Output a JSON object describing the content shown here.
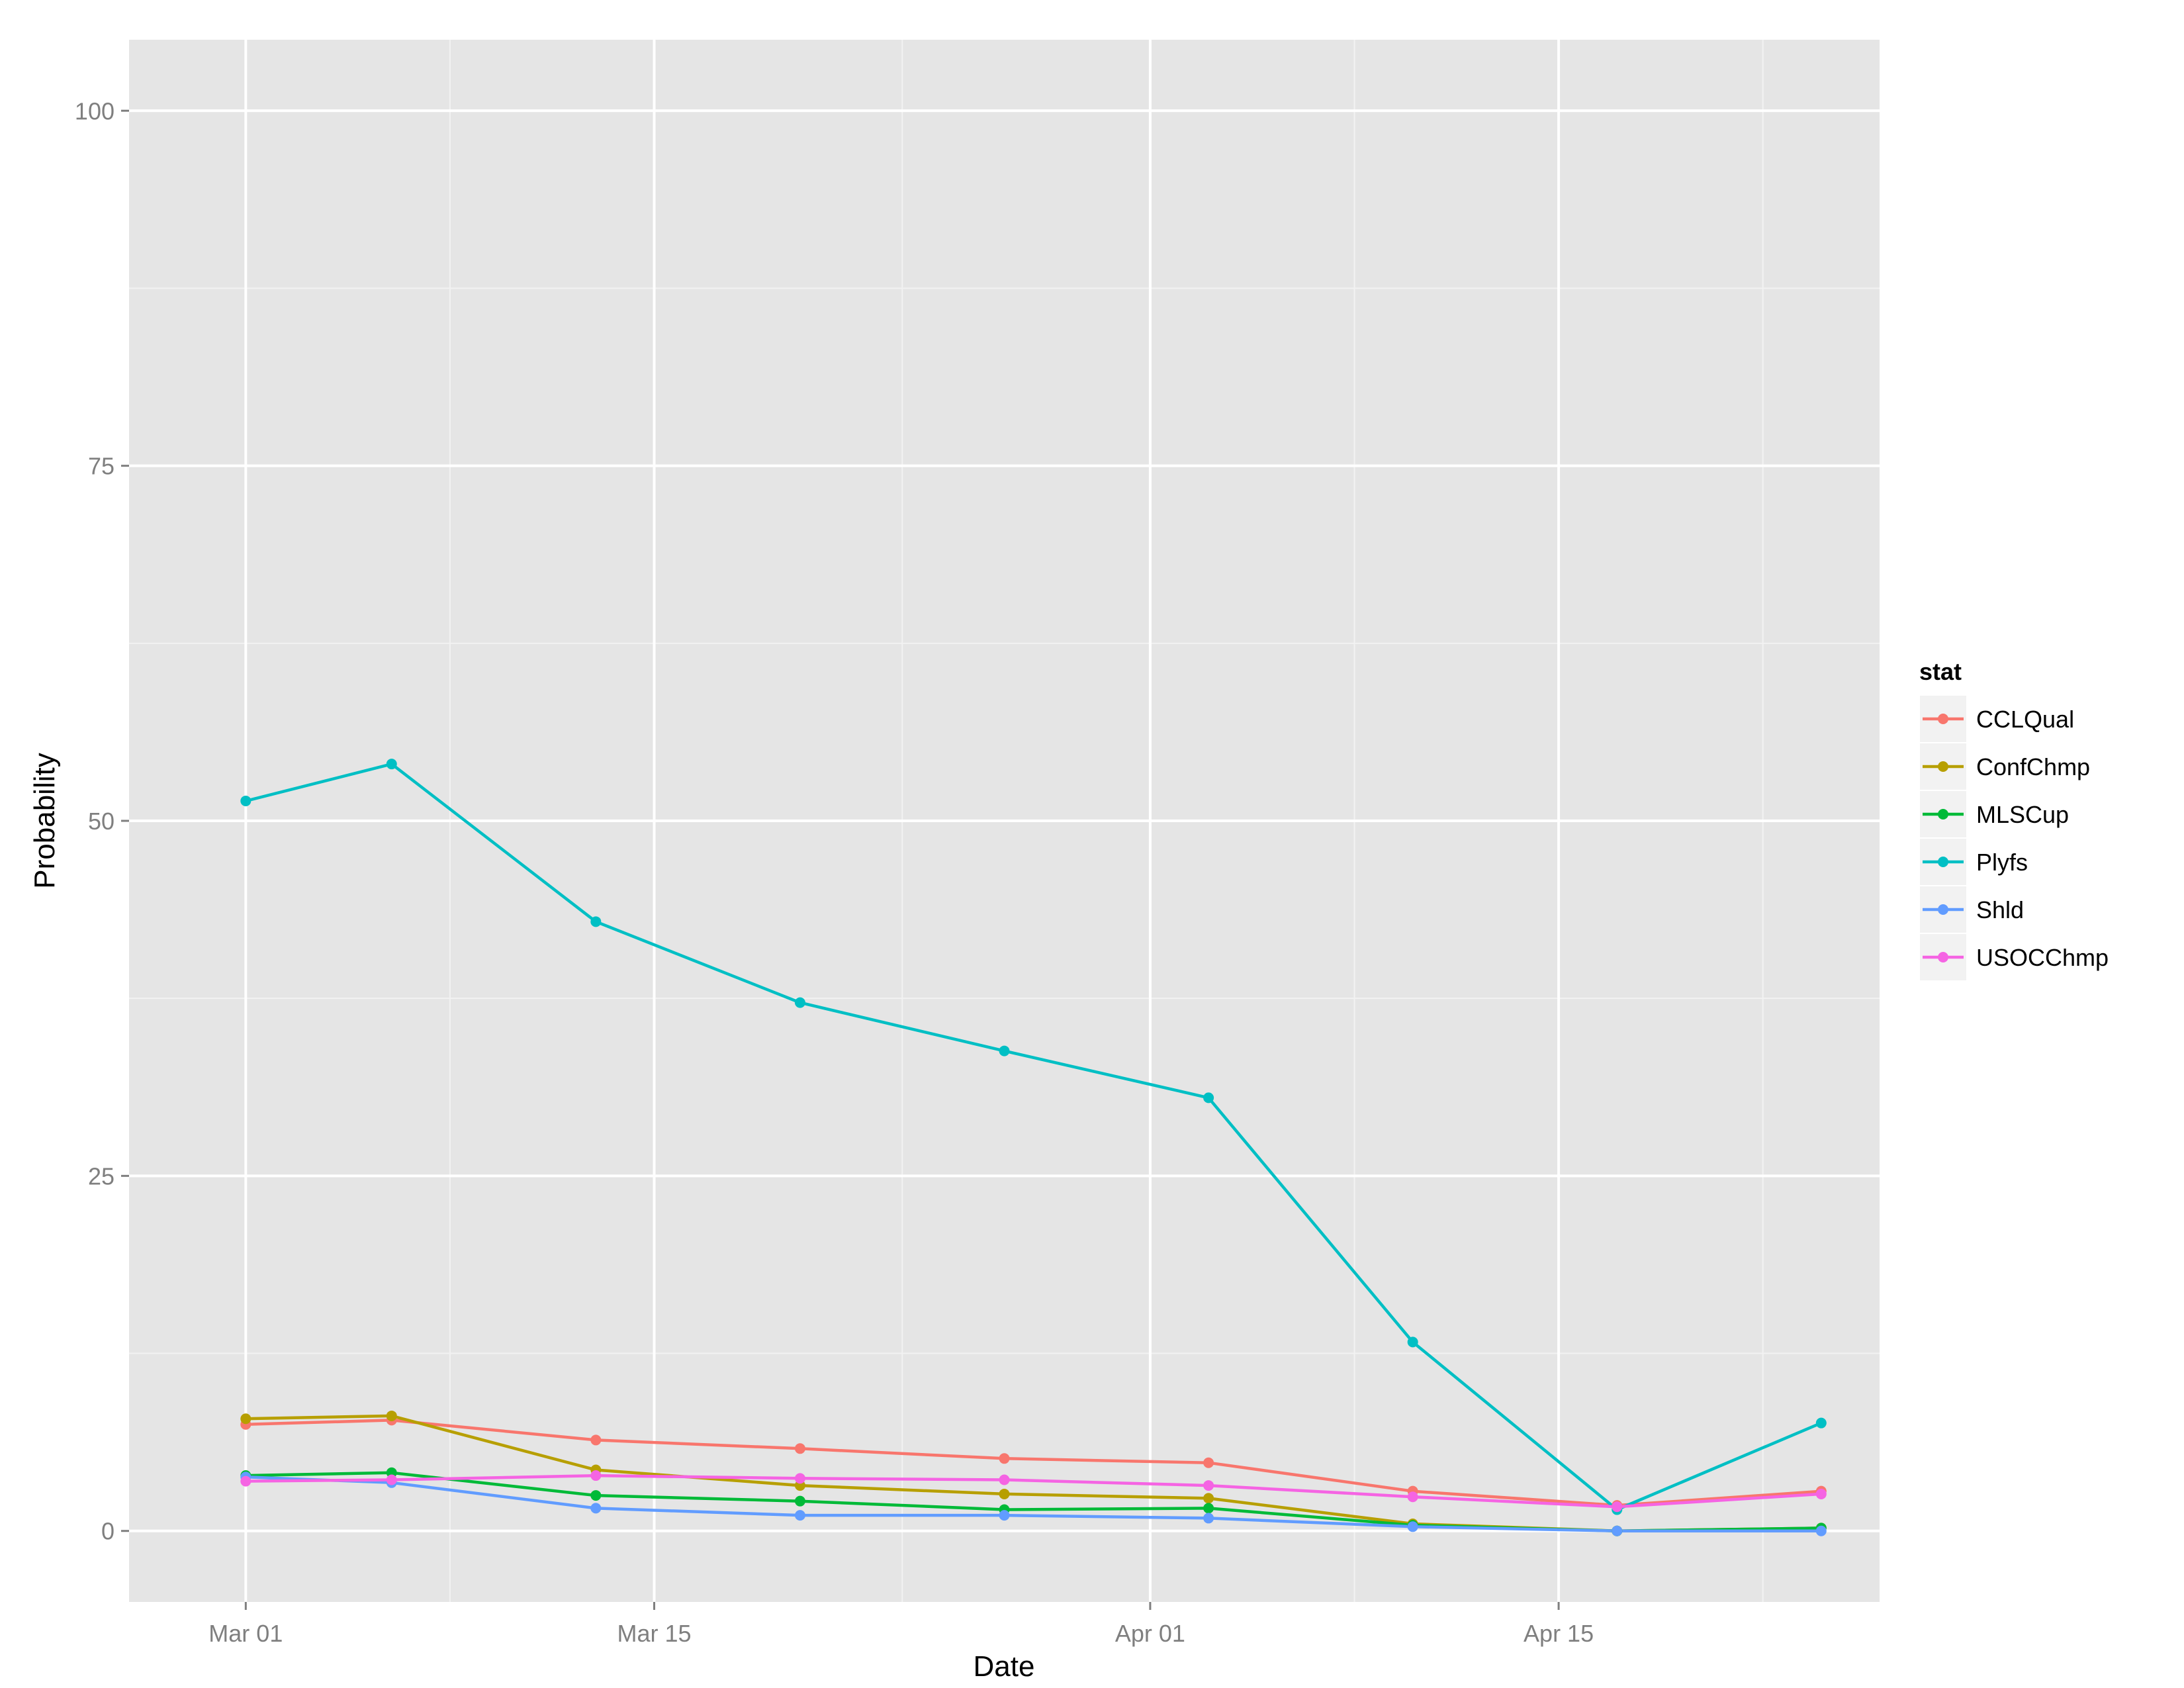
{
  "chart_data": {
    "type": "line",
    "title": "",
    "xlabel": "Date",
    "ylabel": "Probability",
    "xlim": [
      "2014-02-25",
      "2014-04-26"
    ],
    "ylim": [
      -5,
      105
    ],
    "x_ticks": [
      {
        "date": "2014-03-01",
        "label": "Mar 01"
      },
      {
        "date": "2014-03-15",
        "label": "Mar 15"
      },
      {
        "date": "2014-04-01",
        "label": "Apr 01"
      },
      {
        "date": "2014-04-15",
        "label": "Apr 15"
      }
    ],
    "y_ticks": [
      {
        "value": 0,
        "label": "0"
      },
      {
        "value": 25,
        "label": "25"
      },
      {
        "value": 50,
        "label": "50"
      },
      {
        "value": 75,
        "label": "75"
      },
      {
        "value": 100,
        "label": "100"
      }
    ],
    "grid": true,
    "legend": {
      "title": "stat",
      "position": "right"
    },
    "x": [
      "2014-03-01",
      "2014-03-06",
      "2014-03-13",
      "2014-03-20",
      "2014-03-27",
      "2014-04-03",
      "2014-04-10",
      "2014-04-17",
      "2014-04-24"
    ],
    "series": [
      {
        "name": "CCLQual",
        "color": "#F8766D",
        "values": [
          7.5,
          7.8,
          6.4,
          5.8,
          5.1,
          4.8,
          2.8,
          1.8,
          2.8
        ]
      },
      {
        "name": "ConfChmp",
        "color": "#B79F00",
        "values": [
          7.9,
          8.1,
          4.3,
          3.2,
          2.6,
          2.3,
          0.5,
          0.0,
          0.2
        ]
      },
      {
        "name": "MLSCup",
        "color": "#00BA38",
        "values": [
          3.9,
          4.1,
          2.5,
          2.1,
          1.5,
          1.6,
          0.4,
          0.0,
          0.2
        ]
      },
      {
        "name": "Plyfs",
        "color": "#00BFC4",
        "values": [
          51.4,
          54.0,
          42.9,
          37.2,
          33.8,
          30.5,
          13.3,
          1.5,
          7.6
        ]
      },
      {
        "name": "Shld",
        "color": "#619CFF",
        "values": [
          3.8,
          3.4,
          1.6,
          1.1,
          1.1,
          0.9,
          0.3,
          0.0,
          0.0
        ]
      },
      {
        "name": "USOCChmp",
        "color": "#F564E3",
        "values": [
          3.5,
          3.6,
          3.9,
          3.7,
          3.6,
          3.2,
          2.4,
          1.7,
          2.6
        ]
      }
    ]
  },
  "colors": {
    "panel_background": "#E5E5E5",
    "grid_major": "#FFFFFF",
    "grid_minor": "#F2F2F2",
    "legend_key_background": "#F2F2F2"
  }
}
